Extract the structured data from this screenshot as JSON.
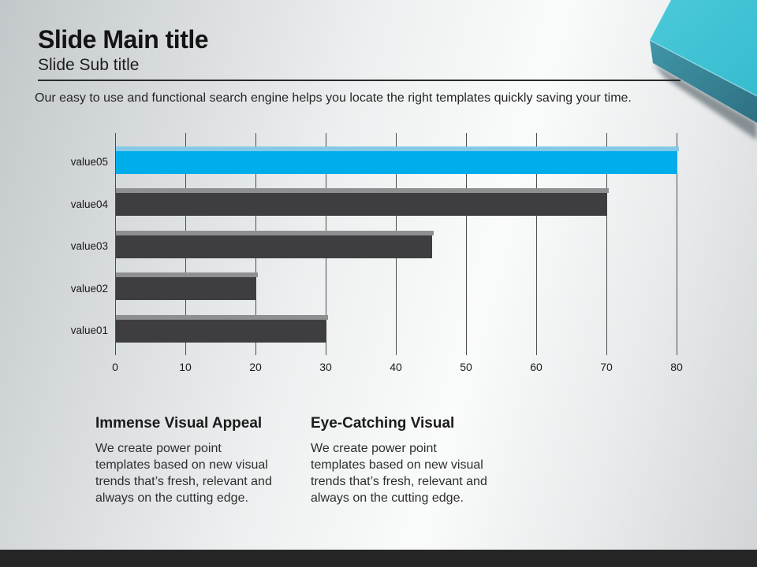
{
  "slide": {
    "title": "Slide Main title",
    "subtitle": "Slide Sub title",
    "description": "Our easy to use and functional search engine helps you locate the right templates quickly saving your time."
  },
  "chart_data": {
    "type": "bar",
    "orientation": "horizontal",
    "title": "",
    "xlabel": "",
    "ylabel": "",
    "categories": [
      "value05",
      "value04",
      "value03",
      "value02",
      "value01"
    ],
    "values": [
      80,
      70,
      45,
      20,
      30
    ],
    "xlim": [
      0,
      80
    ],
    "x_ticks": [
      0,
      10,
      20,
      30,
      40,
      50,
      60,
      70,
      80
    ],
    "grid": true,
    "legend": false,
    "bar_colors": [
      "#00ADEB",
      "#3E3E40",
      "#3E3E40",
      "#3E3E40",
      "#3E3E40"
    ],
    "bar_top_colors": [
      "#85C9E6",
      "#8E8F90",
      "#8E8F90",
      "#8E8F90",
      "#8E8F90"
    ]
  },
  "sections": [
    {
      "heading": "Immense Visual Appeal",
      "body": "We create power point\ntemplates based on new visual\ntrends that’s fresh, relevant and\nalways on the cutting edge."
    },
    {
      "heading": "Eye-Catching Visual",
      "body": "We create power point\ntemplates based on new visual\ntrends that’s fresh, relevant and\nalways on the cutting edge."
    }
  ],
  "colors": {
    "accent_teal_top": "#45C6D7",
    "accent_teal_side": "#38889A",
    "bar_blue": "#00ADEB",
    "bar_dark": "#3E3E40",
    "gridline": "#4D4D4D",
    "footer": "#262626"
  }
}
